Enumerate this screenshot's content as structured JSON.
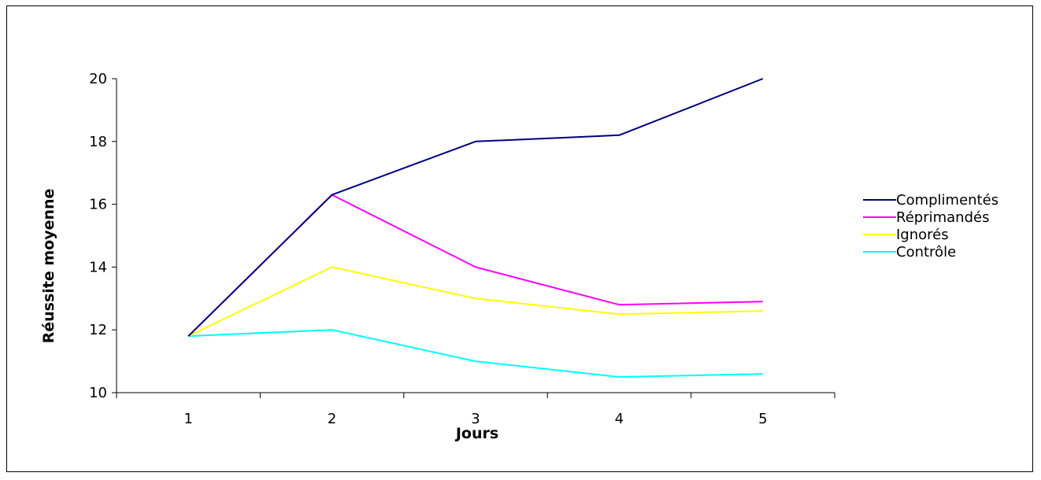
{
  "chart_data": {
    "type": "line",
    "x": [
      1,
      2,
      3,
      4,
      5
    ],
    "categories": [
      "1",
      "2",
      "3",
      "4",
      "5"
    ],
    "xlabel": "Jours",
    "ylabel": "Réussite moyenne",
    "ylim": [
      10,
      20
    ],
    "yticks": [
      "10",
      "12",
      "14",
      "16",
      "18",
      "20"
    ],
    "grid": false,
    "legend_position": "right",
    "series": [
      {
        "name": "Complimentés",
        "color": "#000080",
        "values": [
          11.8,
          16.3,
          18.0,
          18.2,
          20.0
        ]
      },
      {
        "name": "Réprimandés",
        "color": "#ff00ff",
        "values": [
          11.8,
          16.3,
          14.0,
          12.8,
          12.9
        ]
      },
      {
        "name": "Ignorés",
        "color": "#ffff00",
        "values": [
          11.8,
          14.0,
          13.0,
          12.5,
          12.6
        ]
      },
      {
        "name": "Contrôle",
        "color": "#00ffff",
        "values": [
          11.8,
          12.0,
          11.0,
          10.5,
          10.6
        ]
      }
    ]
  }
}
